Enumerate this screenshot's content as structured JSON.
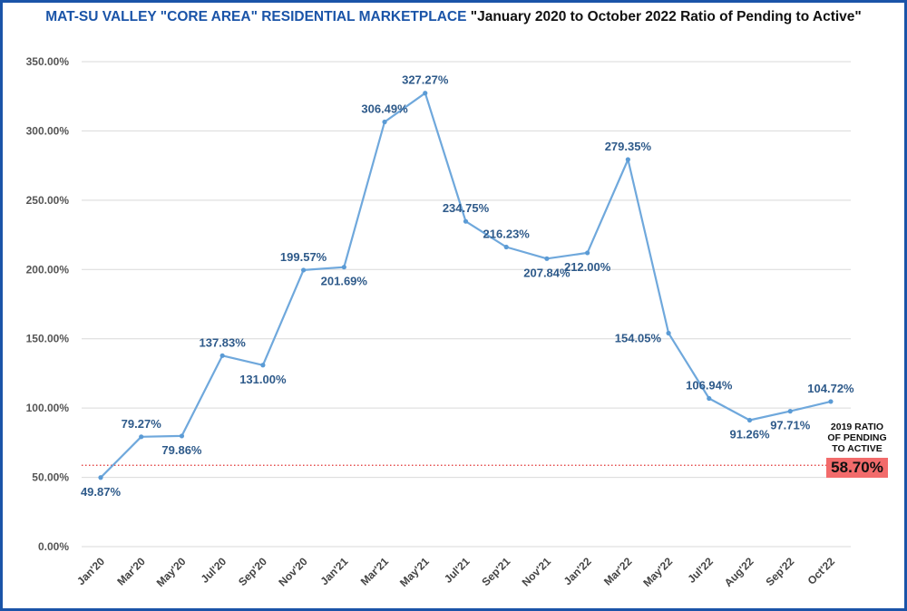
{
  "title": {
    "part1": "MAT-SU VALLEY \"CORE AREA\" RESIDENTIAL MARKETPLACE",
    "part2": "\"January 2020 to October 2022 Ratio of Pending to Active\""
  },
  "colors": {
    "line": "#6fa8dc",
    "marker": "#5b9bd5",
    "label": "#2e5a8a",
    "title_accent": "#1a54a8",
    "reference": "#e03030",
    "reference_badge": "#f26b6b",
    "grid": "#d9d9d9"
  },
  "chart_data": {
    "type": "line",
    "title": "MAT-SU VALLEY \"CORE AREA\" RESIDENTIAL MARKETPLACE \"January 2020 to October 2022 Ratio of Pending to Active\"",
    "xlabel": "",
    "ylabel": "",
    "ylim": [
      0,
      350
    ],
    "yticks": [
      "0.00%",
      "50.00%",
      "100.00%",
      "150.00%",
      "200.00%",
      "250.00%",
      "300.00%",
      "350.00%"
    ],
    "grid": true,
    "categories": [
      "Jan'20",
      "Mar'20",
      "May'20",
      "Jul'20",
      "Sep'20",
      "Nov'20",
      "Jan'21",
      "Mar'21",
      "May'21",
      "Jul'21",
      "Sep'21",
      "Nov'21",
      "Jan'22",
      "Mar'22",
      "May'22",
      "Jul'22",
      "Aug'22",
      "Sep'22",
      "Oct'22"
    ],
    "values": [
      49.87,
      79.27,
      79.86,
      137.83,
      131.0,
      199.57,
      201.69,
      306.49,
      327.27,
      234.75,
      216.23,
      207.84,
      212.0,
      279.35,
      154.05,
      106.94,
      91.26,
      97.71,
      104.72
    ],
    "data_labels": [
      "49.87%",
      "79.27%",
      "79.86%",
      "137.83%",
      "131.00%",
      "199.57%",
      "201.69%",
      "306.49%",
      "327.27%",
      "234.75%",
      "216.23%",
      "207.84%",
      "212.00%",
      "279.35%",
      "154.05%",
      "106.94%",
      "91.26%",
      "97.71%",
      "104.72%"
    ],
    "label_positions": [
      "below",
      "above",
      "below",
      "above",
      "below",
      "above",
      "below",
      "above",
      "above",
      "above",
      "above",
      "below",
      "below",
      "above",
      "left",
      "above",
      "below",
      "below",
      "above"
    ],
    "reference_line": {
      "value": 58.7,
      "label": "58.70%",
      "note": [
        "2019 RATIO",
        "OF PENDING",
        "TO ACTIVE"
      ],
      "style": "dotted"
    }
  }
}
